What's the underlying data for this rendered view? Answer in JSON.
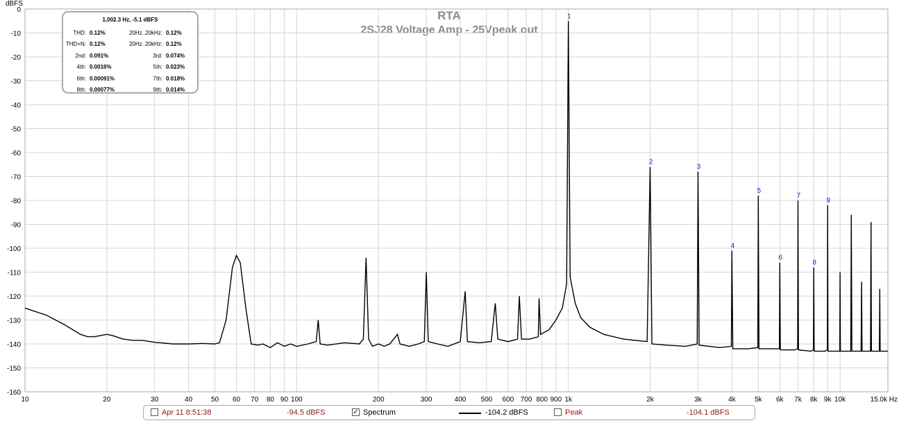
{
  "chart_data": {
    "type": "line",
    "title": "RTA",
    "subtitle": "2SJ28 Voltage Amp - 25Vpeak out",
    "ylabel": "dBFS",
    "xlabel": "Hz",
    "x_scale": "log",
    "xlim": [
      10,
      15000
    ],
    "ylim": [
      -160,
      0
    ],
    "grid": true,
    "y_ticks": [
      0,
      -10,
      -20,
      -30,
      -40,
      -50,
      -60,
      -70,
      -80,
      -90,
      -100,
      -110,
      -120,
      -130,
      -140,
      -150,
      -160
    ],
    "x_ticks": [
      {
        "v": 10,
        "label": "10"
      },
      {
        "v": 20,
        "label": "20"
      },
      {
        "v": 30,
        "label": "30"
      },
      {
        "v": 40,
        "label": "40"
      },
      {
        "v": 50,
        "label": "50"
      },
      {
        "v": 60,
        "label": "60"
      },
      {
        "v": 70,
        "label": "70"
      },
      {
        "v": 80,
        "label": "80"
      },
      {
        "v": 90,
        "label": "90"
      },
      {
        "v": 100,
        "label": "100"
      },
      {
        "v": 200,
        "label": "200"
      },
      {
        "v": 300,
        "label": "300"
      },
      {
        "v": 400,
        "label": "400"
      },
      {
        "v": 500,
        "label": "500"
      },
      {
        "v": 600,
        "label": "600"
      },
      {
        "v": 700,
        "label": "700"
      },
      {
        "v": 800,
        "label": "800"
      },
      {
        "v": 900,
        "label": "900"
      },
      {
        "v": 1000,
        "label": "1k"
      },
      {
        "v": 2000,
        "label": "2k"
      },
      {
        "v": 3000,
        "label": "3k"
      },
      {
        "v": 4000,
        "label": "4k"
      },
      {
        "v": 5000,
        "label": "5k"
      },
      {
        "v": 6000,
        "label": "6k"
      },
      {
        "v": 7000,
        "label": "7k"
      },
      {
        "v": 8000,
        "label": "8k"
      },
      {
        "v": 9000,
        "label": "9k"
      },
      {
        "v": 10000,
        "label": "10k"
      },
      {
        "v": 15000,
        "label": "15.0k Hz"
      }
    ],
    "series": [
      {
        "points": [
          [
            10,
            -125
          ],
          [
            12,
            -128
          ],
          [
            14,
            -132
          ],
          [
            16,
            -136
          ],
          [
            17,
            -137
          ],
          [
            18,
            -137
          ],
          [
            20,
            -136
          ],
          [
            21,
            -136.5
          ],
          [
            23,
            -138
          ],
          [
            25,
            -138.5
          ],
          [
            27,
            -138.5
          ],
          [
            30,
            -139.3
          ],
          [
            35,
            -140
          ],
          [
            40,
            -140
          ],
          [
            45,
            -139.8
          ],
          [
            50,
            -140
          ],
          [
            52,
            -139.5
          ],
          [
            55,
            -130
          ],
          [
            58,
            -108
          ],
          [
            60,
            -103
          ],
          [
            62,
            -106
          ],
          [
            65,
            -125
          ],
          [
            68,
            -140
          ],
          [
            72,
            -140.5
          ],
          [
            75,
            -140
          ],
          [
            80,
            -141.5
          ],
          [
            85,
            -139.5
          ],
          [
            90,
            -141
          ],
          [
            95,
            -140
          ],
          [
            100,
            -141
          ],
          [
            110,
            -140
          ],
          [
            118,
            -139
          ],
          [
            120,
            -130
          ],
          [
            122,
            -140
          ],
          [
            130,
            -140.5
          ],
          [
            150,
            -139.5
          ],
          [
            170,
            -140
          ],
          [
            176,
            -138
          ],
          [
            180,
            -104
          ],
          [
            184,
            -138
          ],
          [
            190,
            -141
          ],
          [
            200,
            -140
          ],
          [
            210,
            -141
          ],
          [
            220,
            -140
          ],
          [
            235,
            -136
          ],
          [
            240,
            -140
          ],
          [
            260,
            -141
          ],
          [
            280,
            -140
          ],
          [
            295,
            -139
          ],
          [
            300,
            -110
          ],
          [
            305,
            -139
          ],
          [
            330,
            -140
          ],
          [
            360,
            -141
          ],
          [
            400,
            -139
          ],
          [
            417,
            -118
          ],
          [
            425,
            -139
          ],
          [
            470,
            -139.5
          ],
          [
            520,
            -139
          ],
          [
            538,
            -123
          ],
          [
            550,
            -138
          ],
          [
            600,
            -139
          ],
          [
            650,
            -138
          ],
          [
            660,
            -120
          ],
          [
            672,
            -138
          ],
          [
            720,
            -138
          ],
          [
            775,
            -137
          ],
          [
            780,
            -121
          ],
          [
            790,
            -136
          ],
          [
            850,
            -134
          ],
          [
            900,
            -130
          ],
          [
            950,
            -125
          ],
          [
            985,
            -115
          ],
          [
            1000,
            -5
          ],
          [
            1015,
            -112
          ],
          [
            1060,
            -123
          ],
          [
            1110,
            -129
          ],
          [
            1200,
            -133
          ],
          [
            1350,
            -136
          ],
          [
            1600,
            -138
          ],
          [
            1950,
            -139
          ],
          [
            2000,
            -66
          ],
          [
            2030,
            -140
          ],
          [
            2300,
            -140.5
          ],
          [
            2700,
            -141
          ],
          [
            2980,
            -140
          ],
          [
            3000,
            -68
          ],
          [
            3030,
            -140.5
          ],
          [
            3600,
            -141.5
          ],
          [
            3980,
            -141
          ],
          [
            4000,
            -101
          ],
          [
            4030,
            -142
          ],
          [
            4600,
            -142
          ],
          [
            4980,
            -141.5
          ],
          [
            5000,
            -78
          ],
          [
            5030,
            -142
          ],
          [
            5700,
            -142
          ],
          [
            5980,
            -142
          ],
          [
            6000,
            -106
          ],
          [
            6030,
            -142.5
          ],
          [
            6800,
            -142.5
          ],
          [
            6980,
            -142
          ],
          [
            7000,
            -80
          ],
          [
            7030,
            -142.5
          ],
          [
            7800,
            -143
          ],
          [
            7980,
            -142.5
          ],
          [
            8000,
            -108
          ],
          [
            8030,
            -143
          ],
          [
            8800,
            -143
          ],
          [
            8980,
            -142.5
          ],
          [
            9000,
            -82
          ],
          [
            9030,
            -143
          ],
          [
            9800,
            -143
          ],
          [
            9980,
            -143
          ],
          [
            10000,
            -110
          ],
          [
            10030,
            -143
          ],
          [
            10950,
            -143
          ],
          [
            11000,
            -86
          ],
          [
            11050,
            -143
          ],
          [
            11950,
            -143
          ],
          [
            12000,
            -114
          ],
          [
            12050,
            -143
          ],
          [
            12950,
            -143
          ],
          [
            13000,
            -89
          ],
          [
            13050,
            -143
          ],
          [
            13950,
            -143
          ],
          [
            14000,
            -117
          ],
          [
            14050,
            -143
          ],
          [
            15000,
            -143
          ]
        ]
      }
    ],
    "harmonic_markers": [
      {
        "label": "1",
        "x": 1000,
        "y": -5
      },
      {
        "label": "2",
        "x": 2000,
        "y": -66
      },
      {
        "label": "3",
        "x": 3000,
        "y": -68
      },
      {
        "label": "4",
        "x": 4000,
        "y": -101
      },
      {
        "label": "5",
        "x": 5000,
        "y": -78
      },
      {
        "label": "6",
        "x": 6000,
        "y": -106
      },
      {
        "label": "7",
        "x": 7000,
        "y": -80
      },
      {
        "label": "8",
        "x": 8000,
        "y": -108
      },
      {
        "label": "9",
        "x": 9000,
        "y": -82
      }
    ],
    "annotations": {
      "header": "1,002.3 Hz, -5.1 dBFS",
      "rows": [
        {
          "l1": "THD:",
          "v1": "0.12%",
          "l2": "20Hz..20kHz:",
          "v2": "0.12%"
        },
        {
          "l1": "THD+N:",
          "v1": "0.12%",
          "l2": "20Hz..20kHz:",
          "v2": "0.12%"
        },
        {
          "l1": "2nd:",
          "v1": "0.091%",
          "l2": "3rd:",
          "v2": "0.074%"
        },
        {
          "l1": "4th:",
          "v1": "0.0016%",
          "l2": "5th:",
          "v2": "0.023%"
        },
        {
          "l1": "6th:",
          "v1": "0.00091%",
          "l2": "7th:",
          "v2": "0.018%"
        },
        {
          "l1": "8th:",
          "v1": "0.00077%",
          "l2": "9th:",
          "v2": "0.014%"
        }
      ]
    }
  },
  "legend": {
    "date_label": "Apr 11 8:51:38",
    "date_checked": false,
    "date_value": "-94.5 dBFS",
    "spectrum_label": "Spectrum",
    "spectrum_checked": true,
    "spectrum_value": "-104.2 dBFS",
    "peak_label": "Peak",
    "peak_checked": false,
    "peak_value": "-104.1 dBFS"
  },
  "colors": {
    "trace": "#000000",
    "grid": "#d6d6d6",
    "harmonic_label": "#1a1acc",
    "title": "#8a8a8a",
    "legend_red": "#8b1a1a"
  }
}
